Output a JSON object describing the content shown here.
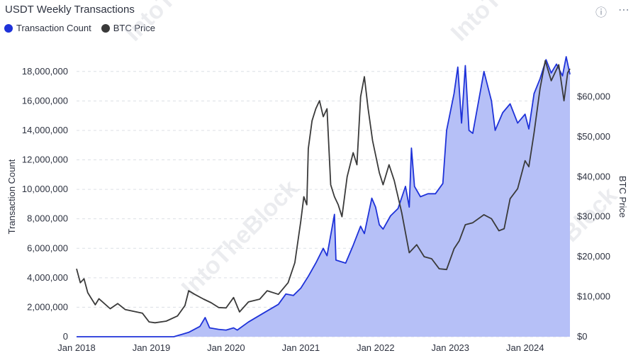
{
  "header": {
    "title": "USDT Weekly Transactions",
    "info_icon": "info-icon",
    "more_icon": "more-icon"
  },
  "colors": {
    "count_line": "#1e32d9",
    "count_fill": "#b6c0f7",
    "price_line": "#3a3a3a",
    "grid": "#dcdfe5"
  },
  "watermark": "IntoTheBlock",
  "chart_data": {
    "type": "area",
    "title": "USDT Weekly Transactions",
    "x_ticks": [
      "Jan 2018",
      "Jan 2019",
      "Jan 2020",
      "Jan 2021",
      "Jan 2022",
      "Jan 2023",
      "Jan 2024"
    ],
    "xlim": [
      2018.0,
      2024.6
    ],
    "y_left": {
      "label": "Transaction Count",
      "lim": [
        0,
        19000000
      ],
      "ticks": [
        "0",
        "2,000,000",
        "4,000,000",
        "6,000,000",
        "8,000,000",
        "10,000,000",
        "12,000,000",
        "14,000,000",
        "16,000,000",
        "18,000,000"
      ],
      "tick_values": [
        0,
        2000000,
        4000000,
        6000000,
        8000000,
        10000000,
        12000000,
        14000000,
        16000000,
        18000000
      ]
    },
    "y_right": {
      "label": "BTC Price",
      "lim": [
        0,
        70000
      ],
      "ticks": [
        "$0",
        "$10,000",
        "$20,000",
        "$30,000",
        "$40,000",
        "$50,000",
        "$60,000"
      ],
      "tick_values": [
        0,
        10000,
        20000,
        30000,
        40000,
        50000,
        60000
      ]
    },
    "grid": true,
    "legend_position": "top-left",
    "series": [
      {
        "name": "Transaction Count",
        "axis": "left",
        "style": "area",
        "points": [
          [
            2018.0,
            0
          ],
          [
            2018.5,
            0
          ],
          [
            2019.0,
            0
          ],
          [
            2019.3,
            0
          ],
          [
            2019.5,
            300000
          ],
          [
            2019.65,
            700000
          ],
          [
            2019.72,
            1300000
          ],
          [
            2019.78,
            600000
          ],
          [
            2019.9,
            500000
          ],
          [
            2020.0,
            450000
          ],
          [
            2020.1,
            600000
          ],
          [
            2020.15,
            450000
          ],
          [
            2020.3,
            1000000
          ],
          [
            2020.5,
            1600000
          ],
          [
            2020.7,
            2200000
          ],
          [
            2020.8,
            2900000
          ],
          [
            2020.9,
            2800000
          ],
          [
            2021.0,
            3300000
          ],
          [
            2021.1,
            4100000
          ],
          [
            2021.2,
            5000000
          ],
          [
            2021.3,
            6000000
          ],
          [
            2021.35,
            5500000
          ],
          [
            2021.45,
            8300000
          ],
          [
            2021.47,
            5200000
          ],
          [
            2021.6,
            5000000
          ],
          [
            2021.7,
            6200000
          ],
          [
            2021.8,
            7500000
          ],
          [
            2021.85,
            7000000
          ],
          [
            2021.95,
            9400000
          ],
          [
            2022.0,
            8800000
          ],
          [
            2022.05,
            7600000
          ],
          [
            2022.1,
            7300000
          ],
          [
            2022.2,
            8200000
          ],
          [
            2022.3,
            8700000
          ],
          [
            2022.4,
            10200000
          ],
          [
            2022.45,
            8800000
          ],
          [
            2022.48,
            12800000
          ],
          [
            2022.52,
            10200000
          ],
          [
            2022.6,
            9500000
          ],
          [
            2022.7,
            9700000
          ],
          [
            2022.8,
            9700000
          ],
          [
            2022.9,
            10400000
          ],
          [
            2022.95,
            14000000
          ],
          [
            2023.05,
            16500000
          ],
          [
            2023.1,
            18300000
          ],
          [
            2023.15,
            14500000
          ],
          [
            2023.2,
            18400000
          ],
          [
            2023.25,
            14000000
          ],
          [
            2023.3,
            13800000
          ],
          [
            2023.45,
            18000000
          ],
          [
            2023.55,
            16000000
          ],
          [
            2023.6,
            14000000
          ],
          [
            2023.7,
            15200000
          ],
          [
            2023.8,
            15800000
          ],
          [
            2023.9,
            14500000
          ],
          [
            2024.0,
            15100000
          ],
          [
            2024.05,
            14100000
          ],
          [
            2024.12,
            16500000
          ],
          [
            2024.2,
            17500000
          ],
          [
            2024.28,
            18800000
          ],
          [
            2024.35,
            17900000
          ],
          [
            2024.42,
            18500000
          ],
          [
            2024.5,
            17700000
          ],
          [
            2024.55,
            19000000
          ],
          [
            2024.6,
            17800000
          ]
        ]
      },
      {
        "name": "BTC Price",
        "axis": "right",
        "style": "line",
        "points": [
          [
            2018.0,
            17000
          ],
          [
            2018.05,
            13500
          ],
          [
            2018.1,
            14500
          ],
          [
            2018.15,
            11000
          ],
          [
            2018.25,
            8000
          ],
          [
            2018.3,
            9500
          ],
          [
            2018.45,
            7000
          ],
          [
            2018.55,
            8300
          ],
          [
            2018.65,
            6800
          ],
          [
            2018.75,
            6400
          ],
          [
            2018.88,
            5900
          ],
          [
            2018.97,
            3700
          ],
          [
            2019.05,
            3500
          ],
          [
            2019.2,
            3900
          ],
          [
            2019.35,
            5200
          ],
          [
            2019.45,
            7800
          ],
          [
            2019.5,
            11500
          ],
          [
            2019.58,
            10600
          ],
          [
            2019.7,
            9400
          ],
          [
            2019.8,
            8500
          ],
          [
            2019.9,
            7300
          ],
          [
            2020.0,
            7200
          ],
          [
            2020.1,
            9800
          ],
          [
            2020.18,
            6200
          ],
          [
            2020.3,
            8700
          ],
          [
            2020.45,
            9400
          ],
          [
            2020.55,
            11500
          ],
          [
            2020.7,
            10600
          ],
          [
            2020.83,
            13500
          ],
          [
            2020.92,
            18500
          ],
          [
            2021.0,
            29000
          ],
          [
            2021.04,
            35000
          ],
          [
            2021.08,
            33000
          ],
          [
            2021.1,
            47000
          ],
          [
            2021.15,
            54000
          ],
          [
            2021.2,
            57000
          ],
          [
            2021.25,
            59000
          ],
          [
            2021.3,
            55000
          ],
          [
            2021.35,
            57000
          ],
          [
            2021.4,
            38000
          ],
          [
            2021.45,
            35000
          ],
          [
            2021.5,
            33000
          ],
          [
            2021.55,
            30000
          ],
          [
            2021.62,
            40000
          ],
          [
            2021.7,
            46000
          ],
          [
            2021.75,
            43000
          ],
          [
            2021.8,
            60000
          ],
          [
            2021.85,
            65000
          ],
          [
            2021.9,
            57000
          ],
          [
            2021.96,
            49000
          ],
          [
            2022.05,
            41000
          ],
          [
            2022.1,
            38000
          ],
          [
            2022.18,
            43000
          ],
          [
            2022.25,
            39000
          ],
          [
            2022.35,
            31000
          ],
          [
            2022.45,
            21000
          ],
          [
            2022.55,
            23000
          ],
          [
            2022.65,
            20000
          ],
          [
            2022.75,
            19500
          ],
          [
            2022.85,
            17000
          ],
          [
            2022.95,
            16800
          ],
          [
            2023.05,
            22000
          ],
          [
            2023.12,
            24000
          ],
          [
            2023.2,
            28000
          ],
          [
            2023.3,
            28500
          ],
          [
            2023.45,
            30500
          ],
          [
            2023.55,
            29500
          ],
          [
            2023.65,
            26500
          ],
          [
            2023.72,
            27000
          ],
          [
            2023.8,
            34500
          ],
          [
            2023.9,
            37000
          ],
          [
            2024.0,
            44000
          ],
          [
            2024.05,
            42500
          ],
          [
            2024.12,
            51000
          ],
          [
            2024.2,
            62000
          ],
          [
            2024.27,
            69000
          ],
          [
            2024.35,
            64000
          ],
          [
            2024.45,
            68000
          ],
          [
            2024.52,
            59000
          ],
          [
            2024.57,
            66000
          ],
          [
            2024.6,
            67000
          ]
        ]
      }
    ]
  }
}
